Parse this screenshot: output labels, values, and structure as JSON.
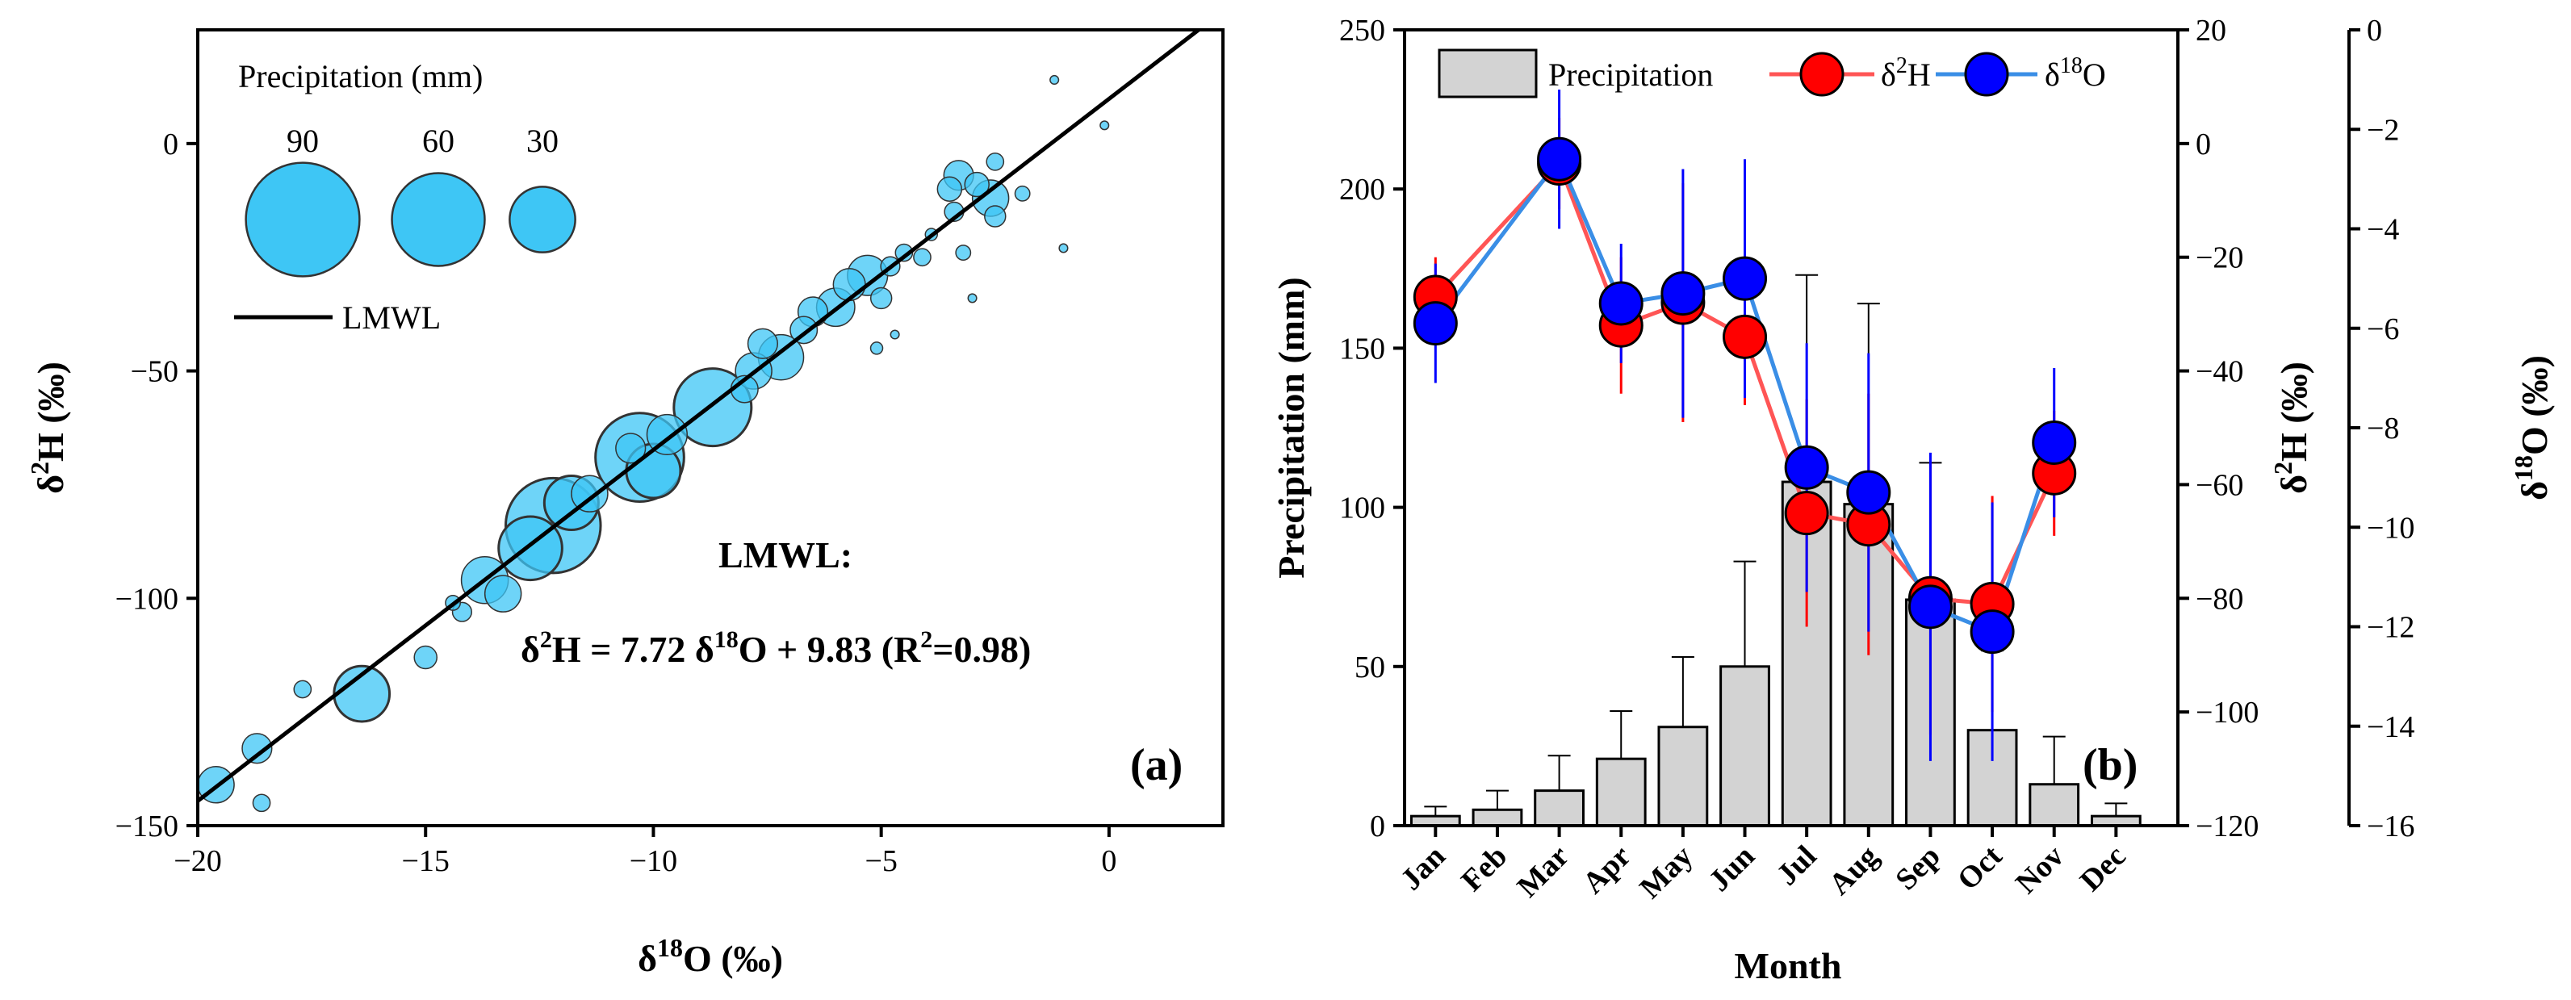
{
  "chart_data": [
    {
      "id": "a",
      "type": "scatter",
      "panel_label": "(a)",
      "xlabel_main": "δ",
      "xlabel_sup": "18",
      "xlabel_rest": "O (‰)",
      "ylabel_main": "δ",
      "ylabel_sup": "2",
      "ylabel_rest": "H (‰)",
      "xlim": [
        -20,
        2.5
      ],
      "ylim": [
        -150,
        25
      ],
      "xticks": [
        -20,
        -15,
        -10,
        -5,
        0
      ],
      "yticks": [
        -150,
        -100,
        -50,
        0
      ],
      "grid": false,
      "legend_title": "Precipitation (mm)",
      "size_legend": [
        90,
        60,
        30
      ],
      "line_legend": "LMWL",
      "lmwl": {
        "slope": 7.72,
        "intercept": 9.83,
        "r2": 0.98
      },
      "equation": {
        "title": "LMWL:",
        "p1": "δ",
        "s1": "2",
        "p2": "H = 7.72 δ",
        "s2": "18",
        "p3": "O + 9.83 (R",
        "s3": "2",
        "p4": "=0.98)"
      },
      "points": [
        {
          "x": -19.6,
          "y": -141,
          "p": 18
        },
        {
          "x": -18.7,
          "y": -133,
          "p": 12
        },
        {
          "x": -18.6,
          "y": -145,
          "p": 4
        },
        {
          "x": -17.7,
          "y": -120,
          "p": 4
        },
        {
          "x": -16.4,
          "y": -121,
          "p": 42
        },
        {
          "x": -15.0,
          "y": -113,
          "p": 7
        },
        {
          "x": -14.4,
          "y": -101,
          "p": 3
        },
        {
          "x": -14.2,
          "y": -103,
          "p": 5
        },
        {
          "x": -13.7,
          "y": -96,
          "p": 30
        },
        {
          "x": -13.3,
          "y": -99,
          "p": 18
        },
        {
          "x": -12.7,
          "y": -89,
          "p": 55
        },
        {
          "x": -12.2,
          "y": -84,
          "p": 123
        },
        {
          "x": -11.8,
          "y": -79,
          "p": 40
        },
        {
          "x": -11.4,
          "y": -77,
          "p": 18
        },
        {
          "x": -10.3,
          "y": -69,
          "p": 107
        },
        {
          "x": -10.0,
          "y": -72,
          "p": 40
        },
        {
          "x": -10.5,
          "y": -67,
          "p": 12
        },
        {
          "x": -9.7,
          "y": -64,
          "p": 22
        },
        {
          "x": -8.7,
          "y": -58,
          "p": 82
        },
        {
          "x": -8.0,
          "y": -54,
          "p": 10
        },
        {
          "x": -7.8,
          "y": -50,
          "p": 18
        },
        {
          "x": -7.6,
          "y": -44,
          "p": 12
        },
        {
          "x": -7.2,
          "y": -47,
          "p": 28
        },
        {
          "x": -6.7,
          "y": -41,
          "p": 10
        },
        {
          "x": -6.5,
          "y": -37,
          "p": 12
        },
        {
          "x": -6.0,
          "y": -36,
          "p": 20
        },
        {
          "x": -5.7,
          "y": -31,
          "p": 14
        },
        {
          "x": -5.3,
          "y": -29,
          "p": 22
        },
        {
          "x": -5.0,
          "y": -34,
          "p": 6
        },
        {
          "x": -4.8,
          "y": -27,
          "p": 5
        },
        {
          "x": -4.5,
          "y": -24,
          "p": 4
        },
        {
          "x": -4.7,
          "y": -42,
          "p": 1
        },
        {
          "x": -5.1,
          "y": -45,
          "p": 2
        },
        {
          "x": -4.1,
          "y": -25,
          "p": 4
        },
        {
          "x": -3.9,
          "y": -20,
          "p": 2
        },
        {
          "x": -3.4,
          "y": -15,
          "p": 5
        },
        {
          "x": -3.2,
          "y": -24,
          "p": 3
        },
        {
          "x": -3.5,
          "y": -10,
          "p": 8
        },
        {
          "x": -3.3,
          "y": -7,
          "p": 12
        },
        {
          "x": -2.6,
          "y": -12,
          "p": 18
        },
        {
          "x": -2.5,
          "y": -16,
          "p": 6
        },
        {
          "x": -2.5,
          "y": -4,
          "p": 4
        },
        {
          "x": -2.9,
          "y": -9,
          "p": 8
        },
        {
          "x": -1.9,
          "y": -11,
          "p": 3
        },
        {
          "x": -1.0,
          "y": -23,
          "p": 1
        },
        {
          "x": -1.2,
          "y": 14,
          "p": 1
        },
        {
          "x": -0.1,
          "y": 4,
          "p": 1
        },
        {
          "x": -3.0,
          "y": -34,
          "p": 1
        }
      ]
    },
    {
      "id": "b",
      "type": "bar+line",
      "panel_label": "(b)",
      "xlabel": "Month",
      "ylabel_left": "Precipitation (mm)",
      "ylabel_mid_main": "δ",
      "ylabel_mid_sup": "2",
      "ylabel_mid_rest": "H (‰)",
      "ylabel_right_main": "δ",
      "ylabel_right_sup": "18",
      "ylabel_right_rest": "O (‰)",
      "categories": [
        "Jan",
        "Feb",
        "Mar",
        "Apr",
        "May",
        "Jun",
        "Jul",
        "Aug",
        "Sep",
        "Oct",
        "Nov",
        "Dec"
      ],
      "ylim_left": [
        0,
        250
      ],
      "yticks_left": [
        0,
        50,
        100,
        150,
        200,
        250
      ],
      "ylim_mid": [
        -120,
        20
      ],
      "yticks_mid": [
        -120,
        -100,
        -80,
        -60,
        -40,
        -20,
        0,
        20
      ],
      "ylim_right": [
        -16,
        0
      ],
      "yticks_right": [
        -16,
        -14,
        -12,
        -10,
        -8,
        -6,
        -4,
        -2,
        0
      ],
      "legend": {
        "bar": "Precipitation",
        "h_main": "δ",
        "h_sup": "2",
        "h_rest": "H",
        "o_main": "δ",
        "o_sup": "18",
        "o_rest": "O"
      },
      "precip": [
        3,
        5,
        11,
        21,
        31,
        50,
        108,
        101,
        71,
        30,
        13,
        3
      ],
      "precip_err": [
        3,
        6,
        11,
        15,
        22,
        33,
        65,
        63,
        43,
        25,
        15,
        4
      ],
      "d2H": [
        -27,
        null,
        -3.5,
        -32,
        -28,
        -34,
        -65,
        -67,
        -80,
        -81,
        -58,
        null
      ],
      "d2H_err": [
        7,
        null,
        8,
        12,
        21,
        12,
        20,
        23,
        24,
        19,
        11,
        null
      ],
      "d18O": [
        -5.9,
        null,
        -2.6,
        -5.5,
        -5.3,
        -5.0,
        -8.8,
        -9.3,
        -11.6,
        -12.1,
        -8.3,
        null
      ],
      "d18O_err": [
        1.2,
        null,
        1.4,
        1.2,
        2.5,
        2.4,
        2.5,
        2.8,
        3.1,
        2.6,
        1.5,
        null
      ],
      "colors": {
        "bar": "#d3d3d3",
        "d2H": "#ff0000",
        "d2H_line": "#ff5555",
        "d18O": "#0000ff",
        "d18O_line": "#3a8ee6",
        "bubble": "#3ec6f5"
      }
    }
  ]
}
